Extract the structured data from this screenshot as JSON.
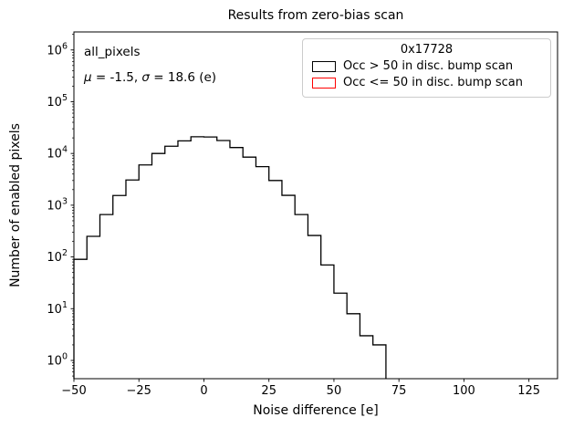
{
  "figure": {
    "annotation": {
      "line1": "all_pixels",
      "mu_symbol": "μ",
      "mu_rest": " = -1.5, ",
      "sigma_symbol": "σ",
      "sigma_rest": " = 18.6 (e)"
    },
    "legend": {
      "title": "0x17728",
      "entries": [
        {
          "label": "Occ > 50 in disc. bump scan",
          "color": "#000000"
        },
        {
          "label": "Occ <= 50 in disc. bump scan",
          "color": "#ff0000"
        }
      ]
    }
  },
  "chart_data": {
    "type": "bar",
    "subtype": "step-histogram",
    "title": "Results from zero-bias scan",
    "xlabel": "Noise difference [e]",
    "ylabel": "Number of enabled pixels",
    "yscale": "log",
    "grid": false,
    "xlim": [
      -50,
      136
    ],
    "ylim": [
      0.444,
      2230000
    ],
    "xticks": {
      "values": [
        -50,
        -25,
        0,
        25,
        50,
        75,
        100,
        125
      ],
      "labels": [
        "−50",
        "−25",
        "0",
        "25",
        "50",
        "75",
        "100",
        "125"
      ]
    },
    "ytick_exponents": [
      0,
      1,
      2,
      3,
      4,
      5,
      6
    ],
    "series": [
      {
        "name": "Occ > 50 in disc. bump scan",
        "color": "#000000",
        "bin_edges": [
          -50,
          -45,
          -40,
          -35,
          -30,
          -25,
          -20,
          -15,
          -10,
          -5,
          0,
          5,
          10,
          15,
          20,
          25,
          30,
          35,
          40,
          45,
          50,
          55,
          60,
          65,
          70
        ],
        "counts": [
          90,
          250,
          660,
          1540,
          3070,
          6000,
          10000,
          13800,
          17500,
          21000,
          20800,
          17800,
          13000,
          8500,
          5560,
          3000,
          1550,
          660,
          260,
          70,
          20,
          8,
          3,
          2
        ]
      },
      {
        "name": "Occ <= 50 in disc. bump scan",
        "color": "#ff0000",
        "bin_edges": [],
        "counts": []
      }
    ]
  }
}
